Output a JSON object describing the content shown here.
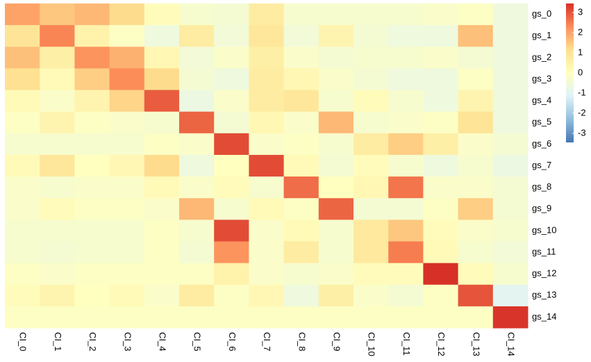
{
  "chart_data": {
    "type": "heatmap",
    "x": [
      "CI_0",
      "CI_1",
      "CI_2",
      "CI_3",
      "CI_4",
      "CI_5",
      "CI_6",
      "CI_7",
      "CI_8",
      "CI_9",
      "CI_10",
      "CI_11",
      "CI_12",
      "CI_13",
      "CI_14"
    ],
    "y": [
      "gs_0",
      "gs_1",
      "gs_2",
      "gs_3",
      "gs_4",
      "gs_5",
      "gs_6",
      "gs_7",
      "gs_8",
      "gs_9",
      "gs_10",
      "gs_11",
      "gs_12",
      "gs_13",
      "gs_14"
    ],
    "values": [
      [
        2.0,
        1.5,
        1.7,
        1.2,
        0.1,
        -0.3,
        -0.4,
        0.7,
        -0.3,
        -0.3,
        -0.3,
        -0.3,
        -0.2,
        -0.1,
        -0.6
      ],
      [
        1.0,
        2.4,
        0.5,
        -0.1,
        -0.6,
        0.7,
        -0.5,
        0.9,
        -0.5,
        0.4,
        -0.4,
        -0.6,
        -0.6,
        1.6,
        -0.6
      ],
      [
        1.6,
        0.6,
        2.2,
        1.8,
        0.3,
        -0.5,
        -0.2,
        0.6,
        -0.2,
        -0.4,
        -0.3,
        -0.3,
        -0.2,
        -0.4,
        -0.6
      ],
      [
        1.1,
        0.2,
        1.4,
        2.3,
        1.2,
        -0.4,
        -0.6,
        0.7,
        0.3,
        -0.2,
        -0.4,
        -0.6,
        -0.6,
        -0.1,
        -0.6
      ],
      [
        0.2,
        -0.2,
        0.4,
        1.3,
        2.9,
        -0.7,
        -0.2,
        0.7,
        0.9,
        -0.3,
        0.1,
        -0.3,
        -0.6,
        0.4,
        -0.6
      ],
      [
        -0.1,
        0.4,
        -0.1,
        -0.2,
        -0.3,
        2.8,
        -0.4,
        0.3,
        -0.2,
        1.7,
        -0.3,
        -0.2,
        -0.1,
        1.0,
        -0.6
      ],
      [
        -0.3,
        -0.3,
        -0.3,
        -0.3,
        -0.1,
        -0.2,
        3.1,
        -0.2,
        -0.1,
        -0.3,
        0.7,
        1.4,
        0.6,
        -0.2,
        -0.4
      ],
      [
        0.2,
        0.9,
        0.0,
        0.3,
        1.2,
        -0.6,
        0.0,
        3.1,
        0.2,
        -0.4,
        0.1,
        -0.3,
        -0.6,
        -0.3,
        -0.7
      ],
      [
        -0.2,
        -0.3,
        -0.2,
        -0.2,
        0.2,
        -0.2,
        0.1,
        -0.3,
        2.7,
        0.0,
        0.3,
        2.6,
        -0.2,
        -0.2,
        -0.4
      ],
      [
        -0.2,
        0.1,
        -0.1,
        -0.1,
        -0.2,
        1.7,
        -0.3,
        0.2,
        -0.1,
        2.8,
        -0.4,
        -0.4,
        -0.1,
        1.4,
        -0.4
      ],
      [
        -0.3,
        -0.3,
        -0.3,
        -0.3,
        -0.1,
        -0.3,
        3.1,
        -0.2,
        0.2,
        -0.3,
        0.8,
        1.5,
        0.1,
        -0.2,
        -0.3
      ],
      [
        -0.3,
        -0.4,
        -0.3,
        -0.3,
        -0.1,
        -0.4,
        2.2,
        -0.2,
        0.7,
        -0.3,
        0.8,
        2.5,
        0.2,
        -0.3,
        -0.5
      ],
      [
        -0.1,
        -0.2,
        -0.1,
        -0.1,
        -0.1,
        -0.1,
        0.5,
        -0.2,
        -0.3,
        -0.2,
        0.1,
        0.1,
        3.45,
        0.1,
        -0.3
      ],
      [
        0.1,
        0.4,
        0.0,
        0.2,
        -0.2,
        0.7,
        -0.1,
        0.3,
        -0.6,
        0.6,
        -0.2,
        -0.4,
        -0.1,
        3.0,
        -1.0
      ],
      [
        -0.1,
        -0.1,
        -0.1,
        -0.1,
        -0.1,
        -0.1,
        -0.1,
        -0.1,
        -0.1,
        -0.1,
        -0.1,
        -0.1,
        -0.1,
        -0.1,
        3.4
      ]
    ],
    "colors": [
      "#4575B4",
      "#91BFDB",
      "#E0F3F8",
      "#FFFFBF",
      "#FEE090",
      "#FC8D59",
      "#D73027"
    ],
    "zlim": [
      -3.45,
      3.45
    ],
    "zticks": [
      -3,
      -2,
      -1,
      0,
      1,
      2,
      3
    ]
  }
}
